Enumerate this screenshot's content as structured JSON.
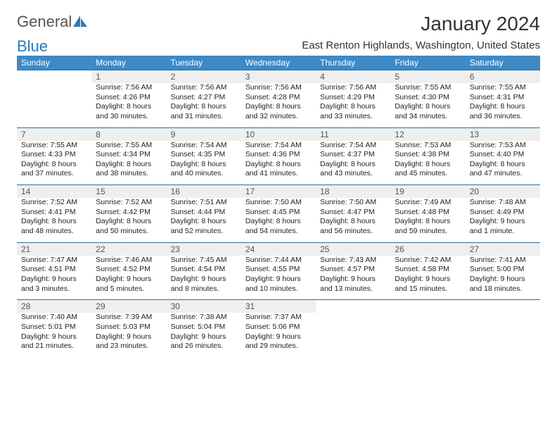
{
  "logo": {
    "part1": "General",
    "part2": "Blue"
  },
  "title": "January 2024",
  "subtitle": "East Renton Highlands, Washington, United States",
  "header_bg": "#3d8ac7",
  "rule_color": "#2a6fa3",
  "daybar_bg": "#efefef",
  "weekdays": [
    "Sunday",
    "Monday",
    "Tuesday",
    "Wednesday",
    "Thursday",
    "Friday",
    "Saturday"
  ],
  "weeks": [
    {
      "days": [
        {
          "num": "",
          "sunrise": "",
          "sunset": "",
          "daylight": ""
        },
        {
          "num": "1",
          "sunrise": "Sunrise: 7:56 AM",
          "sunset": "Sunset: 4:26 PM",
          "daylight": "Daylight: 8 hours and 30 minutes."
        },
        {
          "num": "2",
          "sunrise": "Sunrise: 7:56 AM",
          "sunset": "Sunset: 4:27 PM",
          "daylight": "Daylight: 8 hours and 31 minutes."
        },
        {
          "num": "3",
          "sunrise": "Sunrise: 7:56 AM",
          "sunset": "Sunset: 4:28 PM",
          "daylight": "Daylight: 8 hours and 32 minutes."
        },
        {
          "num": "4",
          "sunrise": "Sunrise: 7:56 AM",
          "sunset": "Sunset: 4:29 PM",
          "daylight": "Daylight: 8 hours and 33 minutes."
        },
        {
          "num": "5",
          "sunrise": "Sunrise: 7:55 AM",
          "sunset": "Sunset: 4:30 PM",
          "daylight": "Daylight: 8 hours and 34 minutes."
        },
        {
          "num": "6",
          "sunrise": "Sunrise: 7:55 AM",
          "sunset": "Sunset: 4:31 PM",
          "daylight": "Daylight: 8 hours and 36 minutes."
        }
      ]
    },
    {
      "days": [
        {
          "num": "7",
          "sunrise": "Sunrise: 7:55 AM",
          "sunset": "Sunset: 4:33 PM",
          "daylight": "Daylight: 8 hours and 37 minutes."
        },
        {
          "num": "8",
          "sunrise": "Sunrise: 7:55 AM",
          "sunset": "Sunset: 4:34 PM",
          "daylight": "Daylight: 8 hours and 38 minutes."
        },
        {
          "num": "9",
          "sunrise": "Sunrise: 7:54 AM",
          "sunset": "Sunset: 4:35 PM",
          "daylight": "Daylight: 8 hours and 40 minutes."
        },
        {
          "num": "10",
          "sunrise": "Sunrise: 7:54 AM",
          "sunset": "Sunset: 4:36 PM",
          "daylight": "Daylight: 8 hours and 41 minutes."
        },
        {
          "num": "11",
          "sunrise": "Sunrise: 7:54 AM",
          "sunset": "Sunset: 4:37 PM",
          "daylight": "Daylight: 8 hours and 43 minutes."
        },
        {
          "num": "12",
          "sunrise": "Sunrise: 7:53 AM",
          "sunset": "Sunset: 4:38 PM",
          "daylight": "Daylight: 8 hours and 45 minutes."
        },
        {
          "num": "13",
          "sunrise": "Sunrise: 7:53 AM",
          "sunset": "Sunset: 4:40 PM",
          "daylight": "Daylight: 8 hours and 47 minutes."
        }
      ]
    },
    {
      "days": [
        {
          "num": "14",
          "sunrise": "Sunrise: 7:52 AM",
          "sunset": "Sunset: 4:41 PM",
          "daylight": "Daylight: 8 hours and 48 minutes."
        },
        {
          "num": "15",
          "sunrise": "Sunrise: 7:52 AM",
          "sunset": "Sunset: 4:42 PM",
          "daylight": "Daylight: 8 hours and 50 minutes."
        },
        {
          "num": "16",
          "sunrise": "Sunrise: 7:51 AM",
          "sunset": "Sunset: 4:44 PM",
          "daylight": "Daylight: 8 hours and 52 minutes."
        },
        {
          "num": "17",
          "sunrise": "Sunrise: 7:50 AM",
          "sunset": "Sunset: 4:45 PM",
          "daylight": "Daylight: 8 hours and 54 minutes."
        },
        {
          "num": "18",
          "sunrise": "Sunrise: 7:50 AM",
          "sunset": "Sunset: 4:47 PM",
          "daylight": "Daylight: 8 hours and 56 minutes."
        },
        {
          "num": "19",
          "sunrise": "Sunrise: 7:49 AM",
          "sunset": "Sunset: 4:48 PM",
          "daylight": "Daylight: 8 hours and 59 minutes."
        },
        {
          "num": "20",
          "sunrise": "Sunrise: 7:48 AM",
          "sunset": "Sunset: 4:49 PM",
          "daylight": "Daylight: 9 hours and 1 minute."
        }
      ]
    },
    {
      "days": [
        {
          "num": "21",
          "sunrise": "Sunrise: 7:47 AM",
          "sunset": "Sunset: 4:51 PM",
          "daylight": "Daylight: 9 hours and 3 minutes."
        },
        {
          "num": "22",
          "sunrise": "Sunrise: 7:46 AM",
          "sunset": "Sunset: 4:52 PM",
          "daylight": "Daylight: 9 hours and 5 minutes."
        },
        {
          "num": "23",
          "sunrise": "Sunrise: 7:45 AM",
          "sunset": "Sunset: 4:54 PM",
          "daylight": "Daylight: 9 hours and 8 minutes."
        },
        {
          "num": "24",
          "sunrise": "Sunrise: 7:44 AM",
          "sunset": "Sunset: 4:55 PM",
          "daylight": "Daylight: 9 hours and 10 minutes."
        },
        {
          "num": "25",
          "sunrise": "Sunrise: 7:43 AM",
          "sunset": "Sunset: 4:57 PM",
          "daylight": "Daylight: 9 hours and 13 minutes."
        },
        {
          "num": "26",
          "sunrise": "Sunrise: 7:42 AM",
          "sunset": "Sunset: 4:58 PM",
          "daylight": "Daylight: 9 hours and 15 minutes."
        },
        {
          "num": "27",
          "sunrise": "Sunrise: 7:41 AM",
          "sunset": "Sunset: 5:00 PM",
          "daylight": "Daylight: 9 hours and 18 minutes."
        }
      ]
    },
    {
      "days": [
        {
          "num": "28",
          "sunrise": "Sunrise: 7:40 AM",
          "sunset": "Sunset: 5:01 PM",
          "daylight": "Daylight: 9 hours and 21 minutes."
        },
        {
          "num": "29",
          "sunrise": "Sunrise: 7:39 AM",
          "sunset": "Sunset: 5:03 PM",
          "daylight": "Daylight: 9 hours and 23 minutes."
        },
        {
          "num": "30",
          "sunrise": "Sunrise: 7:38 AM",
          "sunset": "Sunset: 5:04 PM",
          "daylight": "Daylight: 9 hours and 26 minutes."
        },
        {
          "num": "31",
          "sunrise": "Sunrise: 7:37 AM",
          "sunset": "Sunset: 5:06 PM",
          "daylight": "Daylight: 9 hours and 29 minutes."
        },
        {
          "num": "",
          "sunrise": "",
          "sunset": "",
          "daylight": ""
        },
        {
          "num": "",
          "sunrise": "",
          "sunset": "",
          "daylight": ""
        },
        {
          "num": "",
          "sunrise": "",
          "sunset": "",
          "daylight": ""
        }
      ]
    }
  ]
}
